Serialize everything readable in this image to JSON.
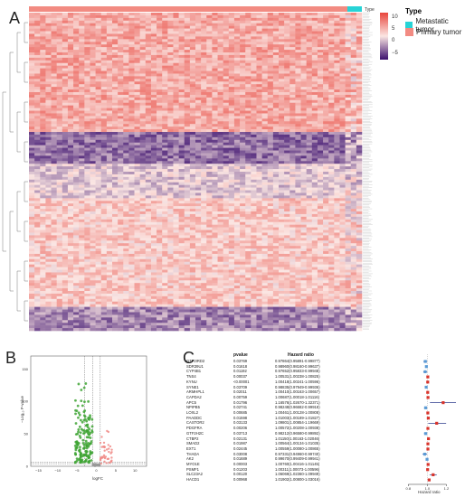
{
  "panels": {
    "a_label": "A",
    "b_label": "B",
    "c_label": "C"
  },
  "heatmap": {
    "colors": {
      "high": "#e8453c",
      "mid": "#f9e0dc",
      "low": "#3b0f6e",
      "metastatic": "#27d3d6",
      "primary": "#f28b82"
    },
    "scale_ticks": [
      "10",
      "5",
      "0",
      "−5"
    ],
    "legend": {
      "title": "Type",
      "items": [
        {
          "label": "Metastatic tumor",
          "color": "#27d3d6"
        },
        {
          "label": "Primary tumor",
          "color": "#f28b82"
        }
      ]
    },
    "annotation_label": "Type"
  },
  "volcano": {
    "ylabel": "−Log₁₀ P-value",
    "xlabel": "logFC",
    "yticks": [
      "150",
      "100",
      "50",
      "0"
    ],
    "xticks": [
      "−15",
      "−10",
      "−5",
      "0",
      "5",
      "10"
    ],
    "colors": {
      "down": "#3fa535",
      "up": "#f08a86",
      "ns": "#999999"
    }
  },
  "forest": {
    "col_pvalue": "pvalue",
    "col_hr": "Hazard ratio",
    "xlabel": "Hazard ratio",
    "xticks": [
      "0.8",
      "1.0",
      "1.2"
    ],
    "rows": [
      {
        "gene": "GTF2IRD2",
        "p": "0.03769",
        "hr": "0.97864(0.95891-0.99877)",
        "v": 0.979,
        "lo": 0.959,
        "hi": 0.999
      },
      {
        "gene": "SDR39U1",
        "p": "0.01618",
        "hr": "0.98960(0.98160-0.99637)",
        "v": 0.99,
        "lo": 0.982,
        "hi": 0.996
      },
      {
        "gene": "CYP4B1",
        "p": "0.01192",
        "hr": "0.97652(0.95833-0.99948)",
        "v": 0.977,
        "lo": 0.958,
        "hi": 0.999
      },
      {
        "gene": "TNS4",
        "p": "0.00037",
        "hr": "1.00531(1.00238-1.00825)",
        "v": 1.005,
        "lo": 1.002,
        "hi": 1.008
      },
      {
        "gene": "KYNU",
        "p": "<0.00001",
        "hr": "1.00418(1.00241-1.00596)",
        "v": 1.004,
        "lo": 1.002,
        "hi": 1.006
      },
      {
        "gene": "SYNE1",
        "p": "0.03709",
        "hr": "0.98835(0.97949-0.99936)",
        "v": 0.988,
        "lo": 0.979,
        "hi": 0.999
      },
      {
        "gene": "ARMHPL1",
        "p": "0.02011",
        "hr": "1.00410(1.00163-1.00657)",
        "v": 1.004,
        "lo": 1.002,
        "hi": 1.007
      },
      {
        "gene": "CAPDA2",
        "p": "0.00759",
        "hr": "1.00687(1.00018-1.01116)",
        "v": 1.007,
        "lo": 1.0,
        "hi": 1.011
      },
      {
        "gene": "APC5",
        "p": "0.01796",
        "hr": "1.16576(1.02670-1.32371)",
        "v": 1.166,
        "lo": 1.027,
        "hi": 1.324
      },
      {
        "gene": "NPIPB5",
        "p": "0.02741",
        "hr": "0.98248(0.96682-0.99918)",
        "v": 0.982,
        "lo": 0.967,
        "hi": 0.999
      },
      {
        "gene": "LOXL2",
        "p": "0.00685",
        "hr": "1.00461(1.00128-1.00808)",
        "v": 1.005,
        "lo": 1.001,
        "hi": 1.008
      },
      {
        "gene": "PAADDC",
        "p": "0.01598",
        "hr": "1.01003(1.00189-1.01827)",
        "v": 1.01,
        "lo": 1.002,
        "hi": 1.018
      },
      {
        "gene": "CASTOR2",
        "p": "0.03133",
        "hr": "1.09801(1.00854-1.19669)",
        "v": 1.098,
        "lo": 1.009,
        "hi": 1.197
      },
      {
        "gene": "PDGFRA",
        "p": "0.00206",
        "hr": "1.00572(1.00208-1.00938)",
        "v": 1.006,
        "lo": 1.002,
        "hi": 1.009
      },
      {
        "gene": "GTF2H2C",
        "p": "0.03713",
        "hr": "0.98212(0.96580-0.99892)",
        "v": 0.982,
        "lo": 0.966,
        "hi": 0.999
      },
      {
        "gene": "CTBP2",
        "p": "0.02131",
        "hr": "1.01150(1.00163-1.02046)",
        "v": 1.012,
        "lo": 1.002,
        "hi": 1.02
      },
      {
        "gene": "SMAD2",
        "p": "0.01987",
        "hr": "1.00564(1.00134-1.01035)",
        "v": 1.006,
        "lo": 1.001,
        "hi": 1.01
      },
      {
        "gene": "EXT1",
        "p": "0.02445",
        "hr": "1.00559(1.00080-1.00865)",
        "v": 1.006,
        "lo": 1.001,
        "hi": 1.009
      },
      {
        "gene": "THADA",
        "p": "0.03008",
        "hr": "0.97331(0.94960-0.99740)",
        "v": 0.973,
        "lo": 0.95,
        "hi": 0.997
      },
      {
        "gene": "AK2",
        "p": "0.01689",
        "hr": "0.99670(0.99409-0.99941)",
        "v": 0.997,
        "lo": 0.994,
        "hi": 0.999
      },
      {
        "gene": "MYO1E",
        "p": "0.00003",
        "hr": "1.00760(1.00416-1.01145)",
        "v": 1.008,
        "lo": 1.004,
        "hi": 1.011
      },
      {
        "gene": "PSMF1",
        "p": "0.01203",
        "hr": "1.00311(1.00073-1.00596)",
        "v": 1.003,
        "lo": 1.001,
        "hi": 1.006
      },
      {
        "gene": "SLC23A2",
        "p": "0.00120",
        "hr": "1.06069(1.02360-1.09949)",
        "v": 1.061,
        "lo": 1.024,
        "hi": 1.099
      },
      {
        "gene": "HACD1",
        "p": "0.00968",
        "hr": "1.01902(1.00800-1.03016)",
        "v": 1.019,
        "lo": 1.008,
        "hi": 1.03
      }
    ]
  }
}
